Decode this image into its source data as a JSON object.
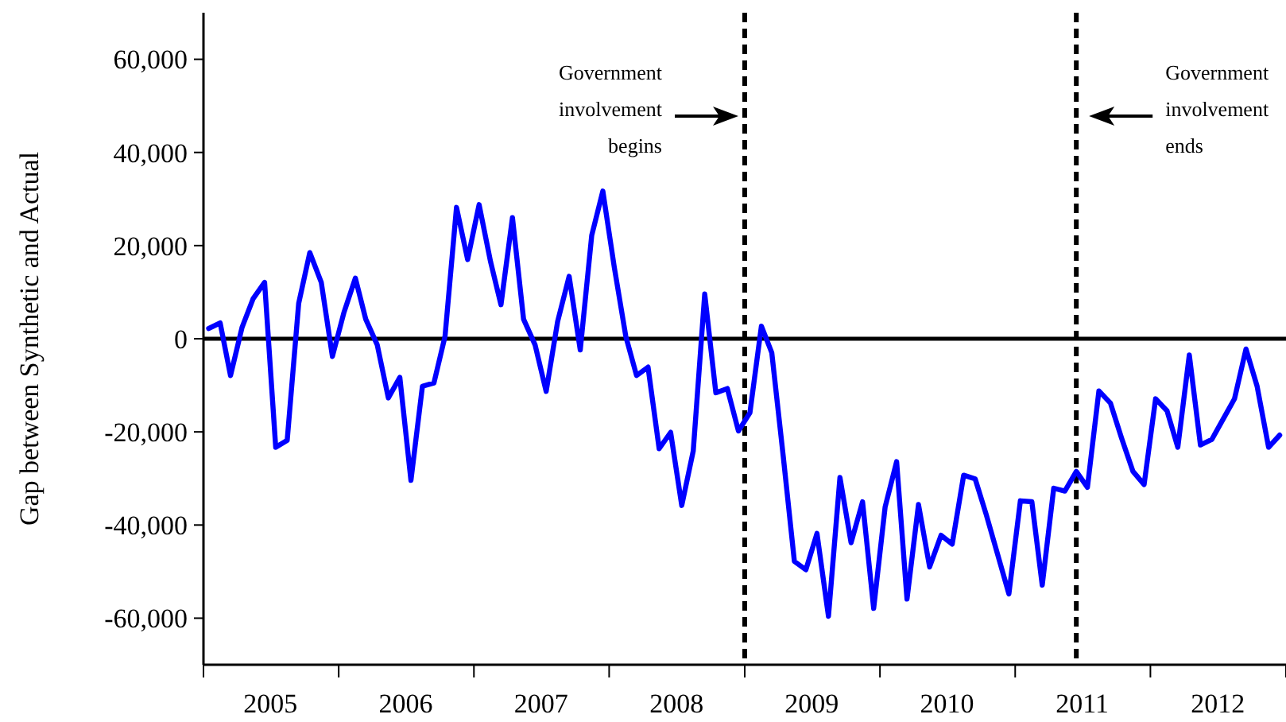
{
  "chart_data": {
    "type": "line",
    "ylabel": "Gap between Synthetic and Actual",
    "x": [
      "2005-01-15",
      "2005-02-15",
      "2005-03-15",
      "2005-04-15",
      "2005-05-15",
      "2005-06-15",
      "2005-07-15",
      "2005-08-15",
      "2005-09-15",
      "2005-10-15",
      "2005-11-15",
      "2005-12-15",
      "2006-01-15",
      "2006-02-15",
      "2006-03-15",
      "2006-04-15",
      "2006-05-15",
      "2006-06-15",
      "2006-07-15",
      "2006-08-15",
      "2006-09-15",
      "2006-10-15",
      "2006-11-15",
      "2006-12-15",
      "2007-01-15",
      "2007-02-15",
      "2007-03-15",
      "2007-04-15",
      "2007-05-15",
      "2007-06-15",
      "2007-07-15",
      "2007-08-15",
      "2007-09-15",
      "2007-10-15",
      "2007-11-15",
      "2007-12-15",
      "2008-01-15",
      "2008-02-15",
      "2008-03-15",
      "2008-04-15",
      "2008-05-15",
      "2008-06-15",
      "2008-07-15",
      "2008-08-15",
      "2008-09-15",
      "2008-10-15",
      "2008-11-15",
      "2008-12-15",
      "2009-01-15",
      "2009-02-15",
      "2009-03-15",
      "2009-04-15",
      "2009-05-15",
      "2009-06-15",
      "2009-07-15",
      "2009-08-15",
      "2009-09-15",
      "2009-10-15",
      "2009-11-15",
      "2009-12-15",
      "2010-01-15",
      "2010-02-15",
      "2010-03-15",
      "2010-04-15",
      "2010-05-15",
      "2010-06-15",
      "2010-07-15",
      "2010-08-15",
      "2010-09-15",
      "2010-10-15",
      "2010-11-15",
      "2010-12-15",
      "2011-01-15",
      "2011-02-15",
      "2011-03-15",
      "2011-04-15",
      "2011-05-15",
      "2011-06-15",
      "2011-07-15",
      "2011-08-15",
      "2011-09-15",
      "2011-10-15",
      "2011-11-15",
      "2011-12-15",
      "2012-01-15",
      "2012-02-15",
      "2012-03-15",
      "2012-04-15",
      "2012-05-15",
      "2012-06-15",
      "2012-07-15",
      "2012-08-15",
      "2012-09-15",
      "2012-10-15",
      "2012-11-15",
      "2012-12-15"
    ],
    "series": [
      {
        "color": "#0000ff",
        "values": [
          2200,
          3400,
          -7900,
          2400,
          8600,
          12100,
          -23300,
          -21800,
          7600,
          18500,
          12100,
          -3800,
          5600,
          13000,
          4200,
          -1300,
          -12700,
          -8300,
          -30400,
          -10200,
          -9500,
          500,
          28200,
          17000,
          28800,
          16500,
          7300,
          26000,
          4200,
          -1300,
          -11300,
          3700,
          13400,
          -2400,
          22200,
          31700,
          15300,
          500,
          -7900,
          -6100,
          -23600,
          -20100,
          -35800,
          -24100,
          9600,
          -11600,
          -10700,
          -19800,
          -15900,
          2700,
          -3000,
          -25300,
          -47800,
          -49600,
          -41800,
          -59600,
          -29800,
          -43800,
          -35000,
          -57900,
          -36100,
          -26400,
          -55900,
          -35600,
          -49000,
          -42200,
          -44100,
          -29300,
          -30100,
          -37800,
          -46400,
          -54800,
          -34800,
          -35000,
          -52900,
          -32100,
          -32700,
          -28500,
          -31900,
          -11200,
          -13800,
          -21300,
          -28500,
          -31300,
          -12900,
          -15500,
          -23300,
          -3500,
          -22800,
          -21600,
          -17300,
          -12900,
          -2200,
          -10200,
          -23300,
          -20700
        ]
      }
    ],
    "xlim": [
      "2005-01-01",
      "2013-01-01"
    ],
    "xticks": [
      {
        "value": "2005-01-01",
        "label": null
      },
      {
        "value": "2005-07-01",
        "label": "2005"
      },
      {
        "value": "2006-01-01",
        "label": null
      },
      {
        "value": "2006-07-01",
        "label": "2006"
      },
      {
        "value": "2007-01-01",
        "label": null
      },
      {
        "value": "2007-07-01",
        "label": "2007"
      },
      {
        "value": "2008-01-01",
        "label": null
      },
      {
        "value": "2008-07-01",
        "label": "2008"
      },
      {
        "value": "2009-01-01",
        "label": null
      },
      {
        "value": "2009-07-01",
        "label": "2009"
      },
      {
        "value": "2010-01-01",
        "label": null
      },
      {
        "value": "2010-07-01",
        "label": "2010"
      },
      {
        "value": "2011-01-01",
        "label": null
      },
      {
        "value": "2011-07-01",
        "label": "2011"
      },
      {
        "value": "2012-01-01",
        "label": null
      },
      {
        "value": "2012-07-01",
        "label": "2012"
      },
      {
        "value": "2013-01-01",
        "label": null
      }
    ],
    "ylim": [
      -70000,
      70000
    ],
    "yticks": [
      {
        "value": -60000,
        "label": "-60,000"
      },
      {
        "value": -40000,
        "label": "-40,000"
      },
      {
        "value": -20000,
        "label": "-20,000"
      },
      0,
      {
        "value": 20000,
        "label": "20,000"
      },
      {
        "value": 40000,
        "label": "40,000"
      },
      {
        "value": 60000,
        "label": "60,000"
      }
    ],
    "ref_lines": [
      {
        "axis": "y",
        "value": 0,
        "color": "#000000",
        "line_style": "solid"
      },
      {
        "axis": "x",
        "value": "2009-01-01",
        "color": "#000000",
        "line_style": "dashed"
      },
      {
        "axis": "x",
        "value": "2011-06-15",
        "color": "#000000",
        "line_style": "dashed"
      }
    ],
    "annotations": [
      "Government involvement begins",
      "Government involvement ends"
    ],
    "grid": false,
    "marker": "none",
    "line_style": "solid"
  }
}
